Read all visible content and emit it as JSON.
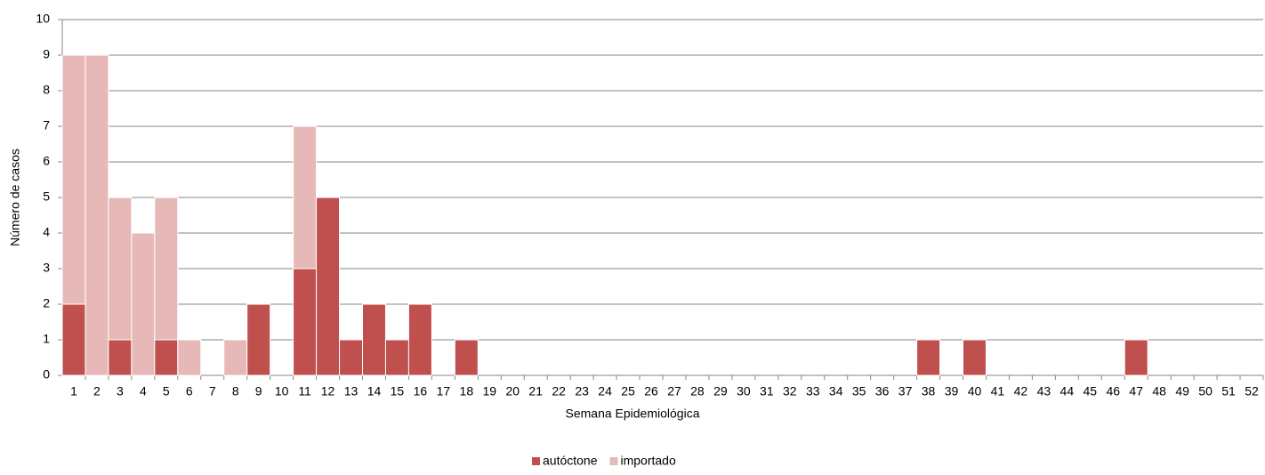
{
  "chart_data": {
    "type": "stacked_bar",
    "x_label": "Semana Epidemiológica",
    "y_label": "Número de casos",
    "categories": [
      "1",
      "2",
      "3",
      "4",
      "5",
      "6",
      "7",
      "8",
      "9",
      "10",
      "11",
      "12",
      "13",
      "14",
      "15",
      "16",
      "17",
      "18",
      "19",
      "20",
      "21",
      "22",
      "23",
      "24",
      "25",
      "26",
      "27",
      "28",
      "29",
      "30",
      "31",
      "32",
      "33",
      "34",
      "35",
      "36",
      "37",
      "38",
      "39",
      "40",
      "41",
      "42",
      "43",
      "44",
      "45",
      "46",
      "47",
      "48",
      "49",
      "50",
      "51",
      "52"
    ],
    "series": [
      {
        "name": "autóctone",
        "color": "#c0504d",
        "values": [
          2,
          0,
          1,
          0,
          1,
          0,
          0,
          0,
          2,
          0,
          3,
          5,
          1,
          2,
          1,
          2,
          0,
          1,
          0,
          0,
          0,
          0,
          0,
          0,
          0,
          0,
          0,
          0,
          0,
          0,
          0,
          0,
          0,
          0,
          0,
          0,
          0,
          1,
          0,
          1,
          0,
          0,
          0,
          0,
          0,
          0,
          1,
          0,
          0,
          0,
          0,
          0
        ]
      },
      {
        "name": "importado",
        "color": "#e6b9b8",
        "values": [
          7,
          9,
          4,
          4,
          4,
          1,
          0,
          1,
          0,
          0,
          4,
          0,
          0,
          0,
          0,
          0,
          0,
          0,
          0,
          0,
          0,
          0,
          0,
          0,
          0,
          0,
          0,
          0,
          0,
          0,
          0,
          0,
          0,
          0,
          0,
          0,
          0,
          0,
          0,
          0,
          0,
          0,
          0,
          0,
          0,
          0,
          0,
          0,
          0,
          0,
          0,
          0
        ]
      }
    ],
    "ylim": [
      0,
      10
    ],
    "yticks": [
      0,
      1,
      2,
      3,
      4,
      5,
      6,
      7,
      8,
      9,
      10
    ],
    "grid": true,
    "legend": "bottom"
  }
}
